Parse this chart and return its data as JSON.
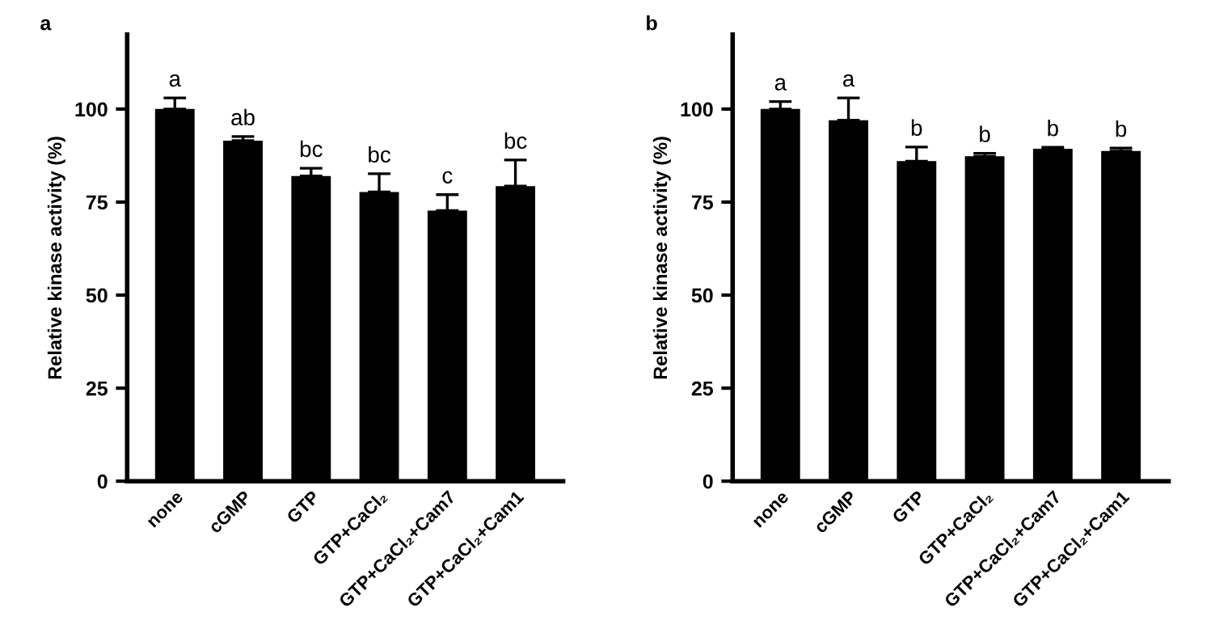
{
  "chart_data": [
    {
      "type": "bar",
      "title": "a",
      "ylabel": "Relative kinase activity (%)",
      "categories": [
        "none",
        "cGMP",
        "GTP",
        "GTP+CaCl₂",
        "GTP+CaCl₂+Cam7",
        "GTP+CaCl₂+Cam1"
      ],
      "series": [
        {
          "color": "#000000",
          "values": [
            100,
            91.5,
            82,
            77.7,
            72.7,
            79.3
          ],
          "errors": [
            [
              100,
              103
            ],
            [
              91.5,
              92.6
            ],
            [
              82,
              84.1
            ],
            [
              77.7,
              82.6
            ],
            [
              72.7,
              77
            ],
            [
              79.3,
              86.3
            ]
          ]
        }
      ],
      "ylim": [
        0,
        120
      ],
      "yticks": [
        0,
        25,
        50,
        75,
        100
      ],
      "grid": false,
      "legend": false,
      "annotations": [
        {
          "text": "a",
          "x": "none",
          "y": 103
        },
        {
          "text": "ab",
          "x": "cGMP",
          "y": 92.6
        },
        {
          "text": "bc",
          "x": "GTP",
          "y": 84.1
        },
        {
          "text": "bc",
          "x": "GTP+CaCl₂",
          "y": 82.6
        },
        {
          "text": "c",
          "x": "GTP+CaCl₂+Cam7",
          "y": 77
        },
        {
          "text": "bc",
          "x": "GTP+CaCl₂+Cam1",
          "y": 86.3
        }
      ]
    },
    {
      "type": "bar",
      "title": "b",
      "ylabel": "Relative kinase activity (%)",
      "categories": [
        "none",
        "cGMP",
        "GTP",
        "GTP+CaCl₂",
        "GTP+CaCl₂+Cam7",
        "GTP+CaCl₂+Cam1"
      ],
      "series": [
        {
          "color": "#000000",
          "values": [
            100,
            97,
            86,
            87.3,
            89.3,
            88.7
          ],
          "errors": [
            [
              100,
              102
            ],
            [
              97,
              103
            ],
            [
              86,
              89.8
            ],
            [
              87.3,
              88.1
            ],
            [
              89.3,
              89.7
            ],
            [
              88.7,
              89.5
            ]
          ]
        }
      ],
      "ylim": [
        0,
        120
      ],
      "yticks": [
        0,
        25,
        50,
        75,
        100
      ],
      "grid": false,
      "legend": false,
      "annotations": [
        {
          "text": "a",
          "x": "none",
          "y": 102
        },
        {
          "text": "a",
          "x": "cGMP",
          "y": 103
        },
        {
          "text": "b",
          "x": "GTP",
          "y": 89.8
        },
        {
          "text": "b",
          "x": "GTP+CaCl₂",
          "y": 88.1
        },
        {
          "text": "b",
          "x": "GTP+CaCl₂+Cam7",
          "y": 89.7
        },
        {
          "text": "b",
          "x": "GTP+CaCl₂+Cam1",
          "y": 89.5
        }
      ]
    }
  ]
}
